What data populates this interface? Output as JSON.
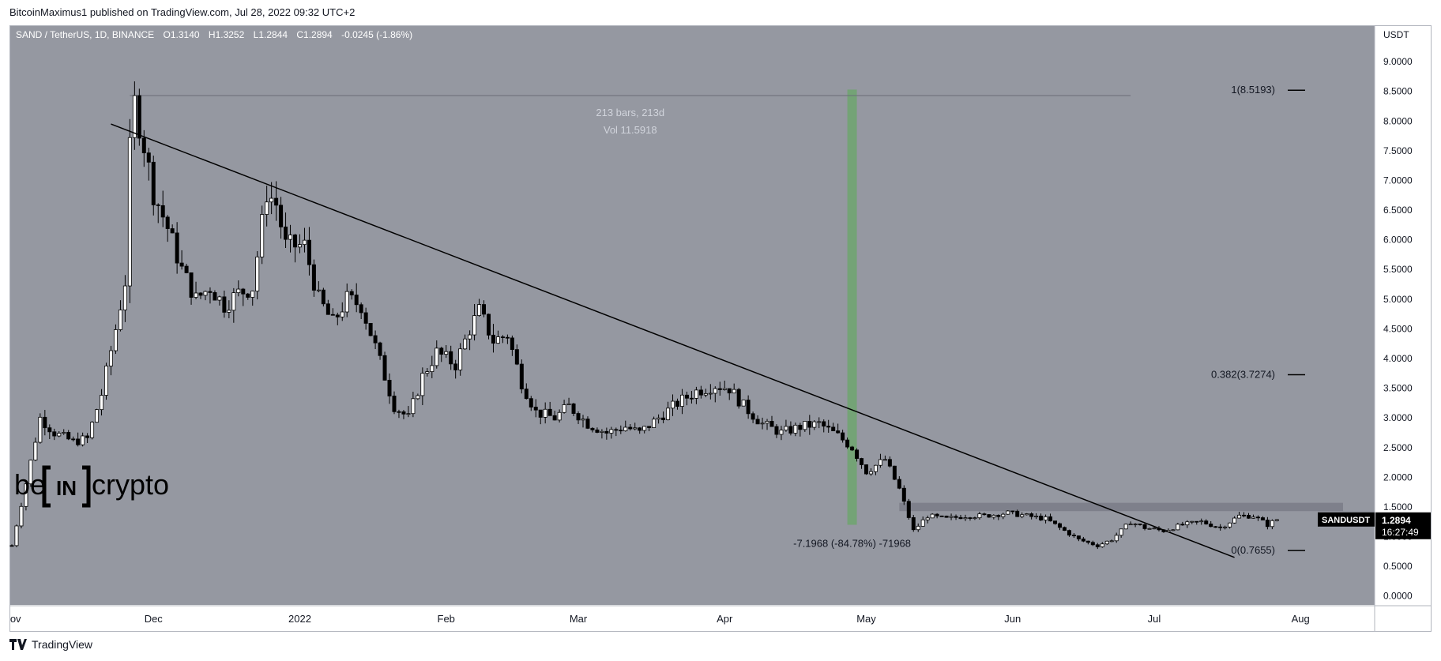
{
  "header": {
    "published_by": "BitcoinMaximus1 published on TradingView.com, Jul 28, 2022 09:32 UTC+2"
  },
  "symbol_info": {
    "name": "SAND / TetherUS, 1D, BINANCE",
    "open_label": "O",
    "open": "1.3140",
    "high_label": "H",
    "high": "1.3252",
    "low_label": "L",
    "low": "1.2844",
    "close_label": "C",
    "close": "1.2894",
    "change": "-0.0245 (-1.86%)"
  },
  "footer": {
    "brand": "TradingView"
  },
  "watermark": {
    "left": "be",
    "middle": "IN",
    "right": "crypto"
  },
  "colors": {
    "plot_bg": "#9598a1",
    "candle_up": "#ffffff",
    "candle_down": "#000000",
    "range_bar": "#6fa56f",
    "trendline": "#000000",
    "resistance_box": "#787b86"
  },
  "chart_data": {
    "type": "candlestick",
    "currency": "USDT",
    "x_axis_labels": [
      "Nov",
      "Dec",
      "2022",
      "Feb",
      "Mar",
      "Apr",
      "May",
      "Jun",
      "Jul",
      "Aug"
    ],
    "y_ticks": [
      "0.0000",
      "0.5000",
      "1.0000",
      "1.5000",
      "2.0000",
      "2.5000",
      "3.0000",
      "3.5000",
      "4.0000",
      "4.5000",
      "5.0000",
      "5.5000",
      "6.0000",
      "6.5000",
      "7.0000",
      "7.5000",
      "8.0000",
      "8.5000",
      "9.0000"
    ],
    "ylim": [
      -0.15,
      9.6
    ],
    "date_range": [
      "2021-11-01",
      "2022-08-10"
    ],
    "price_series": [
      [
        "2021-11-01",
        0.85
      ],
      [
        "2021-11-04",
        1.9
      ],
      [
        "2021-11-07",
        3.0
      ],
      [
        "2021-11-10",
        2.75
      ],
      [
        "2021-11-14",
        2.6
      ],
      [
        "2021-11-17",
        2.65
      ],
      [
        "2021-11-20",
        3.4
      ],
      [
        "2021-11-23",
        4.5
      ],
      [
        "2021-11-25",
        5.3
      ],
      [
        "2021-11-26",
        7.5
      ],
      [
        "2021-11-27",
        8.3
      ],
      [
        "2021-11-29",
        7.6
      ],
      [
        "2021-12-01",
        6.8
      ],
      [
        "2021-12-04",
        6.2
      ],
      [
        "2021-12-07",
        5.5
      ],
      [
        "2021-12-10",
        5.0
      ],
      [
        "2021-12-13",
        5.2
      ],
      [
        "2021-12-16",
        4.9
      ],
      [
        "2021-12-19",
        5.1
      ],
      [
        "2021-12-22",
        5.2
      ],
      [
        "2021-12-25",
        6.8
      ],
      [
        "2021-12-27",
        6.6
      ],
      [
        "2021-12-29",
        5.9
      ],
      [
        "2022-01-02",
        5.9
      ],
      [
        "2022-01-05",
        5.0
      ],
      [
        "2022-01-08",
        4.6
      ],
      [
        "2022-01-11",
        5.0
      ],
      [
        "2022-01-14",
        4.9
      ],
      [
        "2022-01-17",
        4.2
      ],
      [
        "2022-01-21",
        3.2
      ],
      [
        "2022-01-24",
        3.0
      ],
      [
        "2022-01-27",
        3.7
      ],
      [
        "2022-01-30",
        4.1
      ],
      [
        "2022-02-03",
        3.9
      ],
      [
        "2022-02-06",
        4.5
      ],
      [
        "2022-02-08",
        4.8
      ],
      [
        "2022-02-11",
        4.3
      ],
      [
        "2022-02-14",
        4.4
      ],
      [
        "2022-02-17",
        3.6
      ],
      [
        "2022-02-20",
        3.1
      ],
      [
        "2022-02-24",
        3.0
      ],
      [
        "2022-02-27",
        3.2
      ],
      [
        "2022-03-03",
        2.9
      ],
      [
        "2022-03-07",
        2.75
      ],
      [
        "2022-03-11",
        2.85
      ],
      [
        "2022-03-14",
        2.75
      ],
      [
        "2022-03-18",
        3.0
      ],
      [
        "2022-03-22",
        3.25
      ],
      [
        "2022-03-26",
        3.45
      ],
      [
        "2022-03-30",
        3.55
      ],
      [
        "2022-04-02",
        3.5
      ],
      [
        "2022-04-05",
        3.2
      ],
      [
        "2022-04-09",
        2.9
      ],
      [
        "2022-04-13",
        2.75
      ],
      [
        "2022-04-17",
        2.85
      ],
      [
        "2022-04-21",
        2.9
      ],
      [
        "2022-04-25",
        2.7
      ],
      [
        "2022-04-28",
        2.5
      ],
      [
        "2022-05-01",
        2.1
      ],
      [
        "2022-05-05",
        2.3
      ],
      [
        "2022-05-08",
        1.8
      ],
      [
        "2022-05-11",
        1.1
      ],
      [
        "2022-05-14",
        1.35
      ],
      [
        "2022-05-18",
        1.3
      ],
      [
        "2022-05-22",
        1.35
      ],
      [
        "2022-05-26",
        1.35
      ],
      [
        "2022-05-31",
        1.4
      ],
      [
        "2022-06-04",
        1.35
      ],
      [
        "2022-06-08",
        1.3
      ],
      [
        "2022-06-12",
        1.1
      ],
      [
        "2022-06-15",
        0.95
      ],
      [
        "2022-06-19",
        0.85
      ],
      [
        "2022-06-22",
        0.95
      ],
      [
        "2022-06-26",
        1.25
      ],
      [
        "2022-06-29",
        1.15
      ],
      [
        "2022-07-03",
        1.1
      ],
      [
        "2022-07-07",
        1.2
      ],
      [
        "2022-07-11",
        1.25
      ],
      [
        "2022-07-15",
        1.15
      ],
      [
        "2022-07-19",
        1.35
      ],
      [
        "2022-07-22",
        1.35
      ],
      [
        "2022-07-25",
        1.2
      ],
      [
        "2022-07-27",
        1.29
      ]
    ],
    "trendline": {
      "start": [
        "2021-11-22",
        7.95
      ],
      "end": [
        "2022-07-18",
        0.65
      ]
    },
    "resistance_zone": {
      "x": [
        "2022-05-08",
        "2022-08-10"
      ],
      "y": [
        1.43,
        1.57
      ]
    },
    "range_measure": {
      "label_bars": "213 bars, 213d",
      "label_vol": "Vol 11.5918",
      "date": "2022-04-28",
      "y": [
        1.2,
        8.53
      ],
      "top_line": {
        "x": [
          "2021-11-26",
          "2022-06-26"
        ],
        "y": 8.43
      }
    },
    "change_label": "-7.1968 (-84.78%) -71968",
    "fib_levels": [
      {
        "label": "1(8.5193)",
        "value": 8.5193
      },
      {
        "label": "0.382(3.7274)",
        "value": 3.7274
      },
      {
        "label": "0(0.7655)",
        "value": 0.7655
      }
    ],
    "last_price": {
      "ticker": "SANDUSDT",
      "price": "1.2894",
      "countdown": "16:27:49",
      "value": 1.2894
    }
  }
}
